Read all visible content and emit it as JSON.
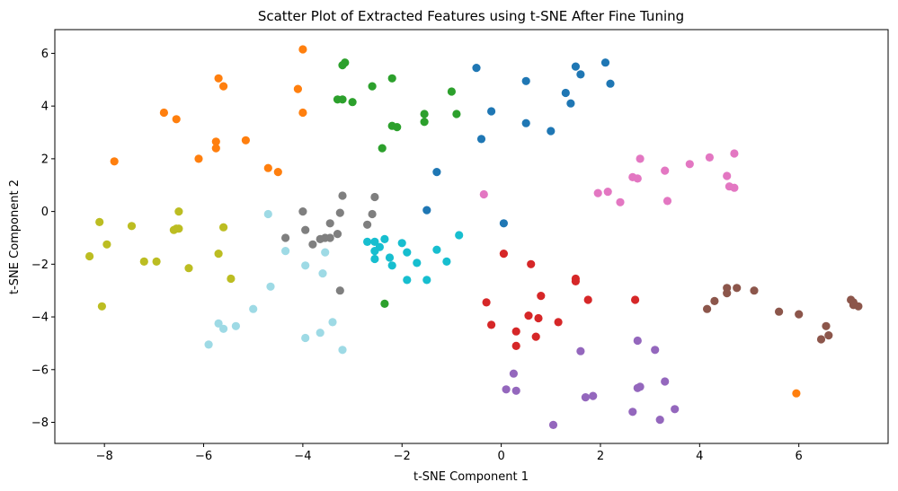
{
  "chart_data": {
    "type": "scatter",
    "title": "Scatter Plot of Extracted Features using t-SNE After Fine Tuning",
    "xlabel": "t-SNE Component 1",
    "ylabel": "t-SNE Component 2",
    "xlim": [
      -9.0,
      7.8
    ],
    "ylim": [
      -8.8,
      6.9
    ],
    "xticks": [
      -8,
      -6,
      -4,
      -2,
      0,
      2,
      4,
      6
    ],
    "yticks": [
      -8,
      -6,
      -4,
      -2,
      0,
      2,
      4,
      6
    ],
    "grid": false,
    "series": [
      {
        "color": "#1f77b4",
        "points": [
          [
            -0.5,
            5.45
          ],
          [
            0.5,
            4.95
          ],
          [
            1.5,
            5.5
          ],
          [
            1.6,
            5.2
          ],
          [
            2.1,
            5.65
          ],
          [
            2.2,
            4.85
          ],
          [
            -0.2,
            3.8
          ],
          [
            1.3,
            4.5
          ],
          [
            1.4,
            4.1
          ],
          [
            0.5,
            3.35
          ],
          [
            1.0,
            3.05
          ],
          [
            -0.4,
            2.75
          ],
          [
            -1.3,
            1.5
          ],
          [
            -1.5,
            0.05
          ],
          [
            0.05,
            -0.45
          ]
        ]
      },
      {
        "color": "#ff7f0e",
        "points": [
          [
            -4.0,
            6.15
          ],
          [
            -5.7,
            5.05
          ],
          [
            -5.6,
            4.75
          ],
          [
            -4.1,
            4.65
          ],
          [
            -4.0,
            3.75
          ],
          [
            -6.8,
            3.75
          ],
          [
            -6.55,
            3.5
          ],
          [
            -5.75,
            2.65
          ],
          [
            -5.75,
            2.4
          ],
          [
            -5.15,
            2.7
          ],
          [
            -6.1,
            2.0
          ],
          [
            -7.8,
            1.9
          ],
          [
            -4.7,
            1.65
          ],
          [
            -4.5,
            1.5
          ],
          [
            5.95,
            -6.9
          ]
        ]
      },
      {
        "color": "#2ca02c",
        "points": [
          [
            -3.15,
            5.65
          ],
          [
            -3.2,
            5.55
          ],
          [
            -2.2,
            5.05
          ],
          [
            -2.6,
            4.75
          ],
          [
            -1.0,
            4.55
          ],
          [
            -3.3,
            4.25
          ],
          [
            -3.2,
            4.25
          ],
          [
            -3.0,
            4.15
          ],
          [
            -1.55,
            3.7
          ],
          [
            -0.9,
            3.7
          ],
          [
            -1.55,
            3.4
          ],
          [
            -2.2,
            3.25
          ],
          [
            -2.1,
            3.2
          ],
          [
            -2.4,
            2.4
          ],
          [
            -2.35,
            -3.5
          ]
        ]
      },
      {
        "color": "#d62728",
        "points": [
          [
            0.05,
            -1.6
          ],
          [
            0.6,
            -2.0
          ],
          [
            1.5,
            -2.55
          ],
          [
            1.5,
            -2.65
          ],
          [
            0.8,
            -3.2
          ],
          [
            -0.3,
            -3.45
          ],
          [
            1.75,
            -3.35
          ],
          [
            2.7,
            -3.35
          ],
          [
            0.55,
            -3.95
          ],
          [
            0.75,
            -4.05
          ],
          [
            1.15,
            -4.2
          ],
          [
            -0.2,
            -4.3
          ],
          [
            0.3,
            -4.55
          ],
          [
            0.7,
            -4.75
          ],
          [
            0.3,
            -5.1
          ]
        ]
      },
      {
        "color": "#9467bd",
        "points": [
          [
            1.6,
            -5.3
          ],
          [
            2.75,
            -4.9
          ],
          [
            3.1,
            -5.25
          ],
          [
            0.25,
            -6.15
          ],
          [
            3.3,
            -6.45
          ],
          [
            2.75,
            -6.7
          ],
          [
            2.8,
            -6.65
          ],
          [
            0.1,
            -6.75
          ],
          [
            0.3,
            -6.8
          ],
          [
            1.85,
            -7.0
          ],
          [
            1.7,
            -7.05
          ],
          [
            3.5,
            -7.5
          ],
          [
            2.65,
            -7.6
          ],
          [
            3.2,
            -7.9
          ],
          [
            1.05,
            -8.1
          ]
        ]
      },
      {
        "color": "#8c564b",
        "points": [
          [
            4.55,
            -2.9
          ],
          [
            4.75,
            -2.9
          ],
          [
            5.1,
            -3.0
          ],
          [
            4.55,
            -3.1
          ],
          [
            4.3,
            -3.4
          ],
          [
            4.15,
            -3.7
          ],
          [
            7.05,
            -3.35
          ],
          [
            7.1,
            -3.45
          ],
          [
            7.1,
            -3.55
          ],
          [
            7.2,
            -3.6
          ],
          [
            5.6,
            -3.8
          ],
          [
            6.0,
            -3.9
          ],
          [
            6.55,
            -4.35
          ],
          [
            6.6,
            -4.7
          ],
          [
            6.45,
            -4.85
          ]
        ]
      },
      {
        "color": "#e377c2",
        "points": [
          [
            4.7,
            2.2
          ],
          [
            2.8,
            2.0
          ],
          [
            4.2,
            2.05
          ],
          [
            3.8,
            1.8
          ],
          [
            3.3,
            1.55
          ],
          [
            4.55,
            1.35
          ],
          [
            2.65,
            1.3
          ],
          [
            2.75,
            1.25
          ],
          [
            4.6,
            0.95
          ],
          [
            4.7,
            0.9
          ],
          [
            2.15,
            0.75
          ],
          [
            1.95,
            0.7
          ],
          [
            2.4,
            0.35
          ],
          [
            3.35,
            0.4
          ],
          [
            -0.35,
            0.65
          ]
        ]
      },
      {
        "color": "#7f7f7f",
        "points": [
          [
            -3.2,
            0.6
          ],
          [
            -2.55,
            0.55
          ],
          [
            -4.0,
            0.0
          ],
          [
            -3.25,
            -0.05
          ],
          [
            -3.45,
            -0.45
          ],
          [
            -2.7,
            -0.5
          ],
          [
            -3.95,
            -0.7
          ],
          [
            -3.3,
            -0.85
          ],
          [
            -4.35,
            -1.0
          ],
          [
            -3.55,
            -1.0
          ],
          [
            -3.45,
            -1.0
          ],
          [
            -3.65,
            -1.05
          ],
          [
            -3.8,
            -1.25
          ],
          [
            -3.25,
            -3.0
          ],
          [
            -2.6,
            -0.1
          ]
        ]
      },
      {
        "color": "#bcbd22",
        "points": [
          [
            -6.5,
            0.0
          ],
          [
            -8.1,
            -0.4
          ],
          [
            -7.45,
            -0.55
          ],
          [
            -5.6,
            -0.6
          ],
          [
            -6.55,
            -0.65
          ],
          [
            -6.6,
            -0.7
          ],
          [
            -7.95,
            -1.25
          ],
          [
            -5.7,
            -1.6
          ],
          [
            -8.3,
            -1.7
          ],
          [
            -7.2,
            -1.9
          ],
          [
            -6.95,
            -1.9
          ],
          [
            -6.3,
            -2.15
          ],
          [
            -5.45,
            -2.55
          ],
          [
            -8.05,
            -3.6
          ],
          [
            -6.5,
            -0.65
          ]
        ]
      },
      {
        "color": "#17becf",
        "points": [
          [
            -2.7,
            -1.15
          ],
          [
            -2.55,
            -1.15
          ],
          [
            -2.35,
            -1.05
          ],
          [
            -2.0,
            -1.2
          ],
          [
            -2.45,
            -1.35
          ],
          [
            -1.9,
            -1.55
          ],
          [
            -2.55,
            -1.5
          ],
          [
            -1.3,
            -1.45
          ],
          [
            -2.55,
            -1.8
          ],
          [
            -2.25,
            -1.75
          ],
          [
            -1.7,
            -1.95
          ],
          [
            -1.1,
            -1.9
          ],
          [
            -2.2,
            -2.05
          ],
          [
            -1.9,
            -2.6
          ],
          [
            -1.5,
            -2.6
          ],
          [
            -0.85,
            -0.9
          ]
        ]
      },
      {
        "color": "#9edae5",
        "points": [
          [
            -4.7,
            -0.1
          ],
          [
            -4.35,
            -1.5
          ],
          [
            -3.95,
            -2.05
          ],
          [
            -3.55,
            -1.55
          ],
          [
            -3.6,
            -2.35
          ],
          [
            -4.65,
            -2.85
          ],
          [
            -5.0,
            -3.7
          ],
          [
            -5.7,
            -4.25
          ],
          [
            -5.35,
            -4.35
          ],
          [
            -5.6,
            -4.45
          ],
          [
            -3.4,
            -4.2
          ],
          [
            -3.65,
            -4.6
          ],
          [
            -3.95,
            -4.8
          ],
          [
            -5.9,
            -5.05
          ],
          [
            -3.2,
            -5.25
          ]
        ]
      }
    ]
  }
}
